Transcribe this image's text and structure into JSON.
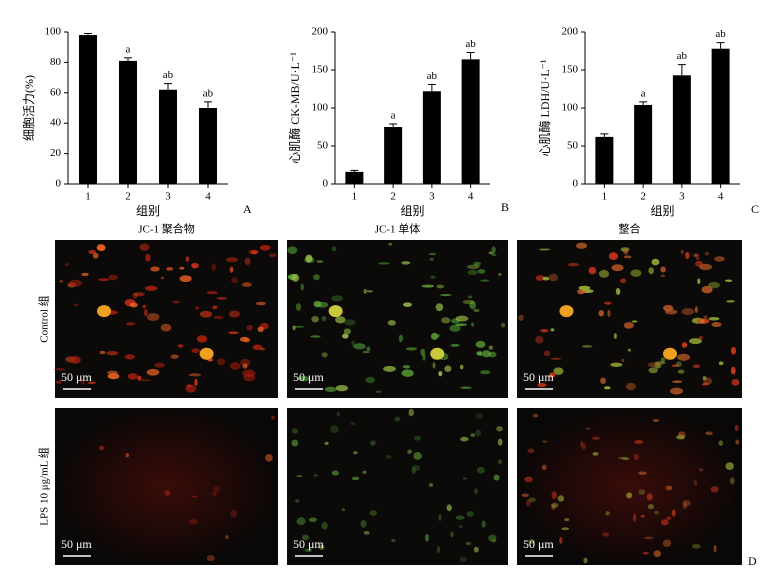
{
  "chart_data": [
    {
      "type": "bar",
      "ylabel": "细胞活力(%)",
      "xlabel": "组别",
      "panel": "A",
      "categories": [
        "1",
        "2",
        "3",
        "4"
      ],
      "values": [
        98,
        81,
        62,
        50
      ],
      "errors": [
        1,
        2,
        4,
        4
      ],
      "annotations": [
        null,
        "a",
        "ab",
        "ab"
      ],
      "color": "#000000",
      "ylim": [
        0,
        100
      ],
      "yticks": [
        0,
        20,
        40,
        60,
        80,
        100
      ]
    },
    {
      "type": "bar",
      "ylabel": "心肌酶 CK-MB/U·L⁻¹",
      "xlabel": "组别",
      "panel": "B",
      "categories": [
        "1",
        "2",
        "3",
        "4"
      ],
      "values": [
        16,
        75,
        122,
        164
      ],
      "errors": [
        2,
        4,
        9,
        9
      ],
      "annotations": [
        null,
        "a",
        "ab",
        "ab"
      ],
      "color": "#000000",
      "ylim": [
        0,
        200
      ],
      "yticks": [
        0,
        50,
        100,
        150,
        200
      ]
    },
    {
      "type": "bar",
      "ylabel": "心肌酶 LDH/U·L⁻¹",
      "xlabel": "组别",
      "panel": "C",
      "categories": [
        "1",
        "2",
        "3",
        "4"
      ],
      "values": [
        62,
        104,
        143,
        178
      ],
      "errors": [
        4,
        4,
        14,
        8
      ],
      "annotations": [
        null,
        "a",
        "ab",
        "ab"
      ],
      "color": "#000000",
      "ylim": [
        0,
        200
      ],
      "yticks": [
        0,
        50,
        100,
        150,
        200
      ]
    }
  ],
  "micrographs": {
    "columns": [
      "JC-1 聚合物",
      "JC-1 单体",
      "整合"
    ],
    "rows": [
      "Control 组",
      "LPS 10 μg/mL 组"
    ],
    "scale_bar": "50 μm",
    "panel": "D"
  }
}
